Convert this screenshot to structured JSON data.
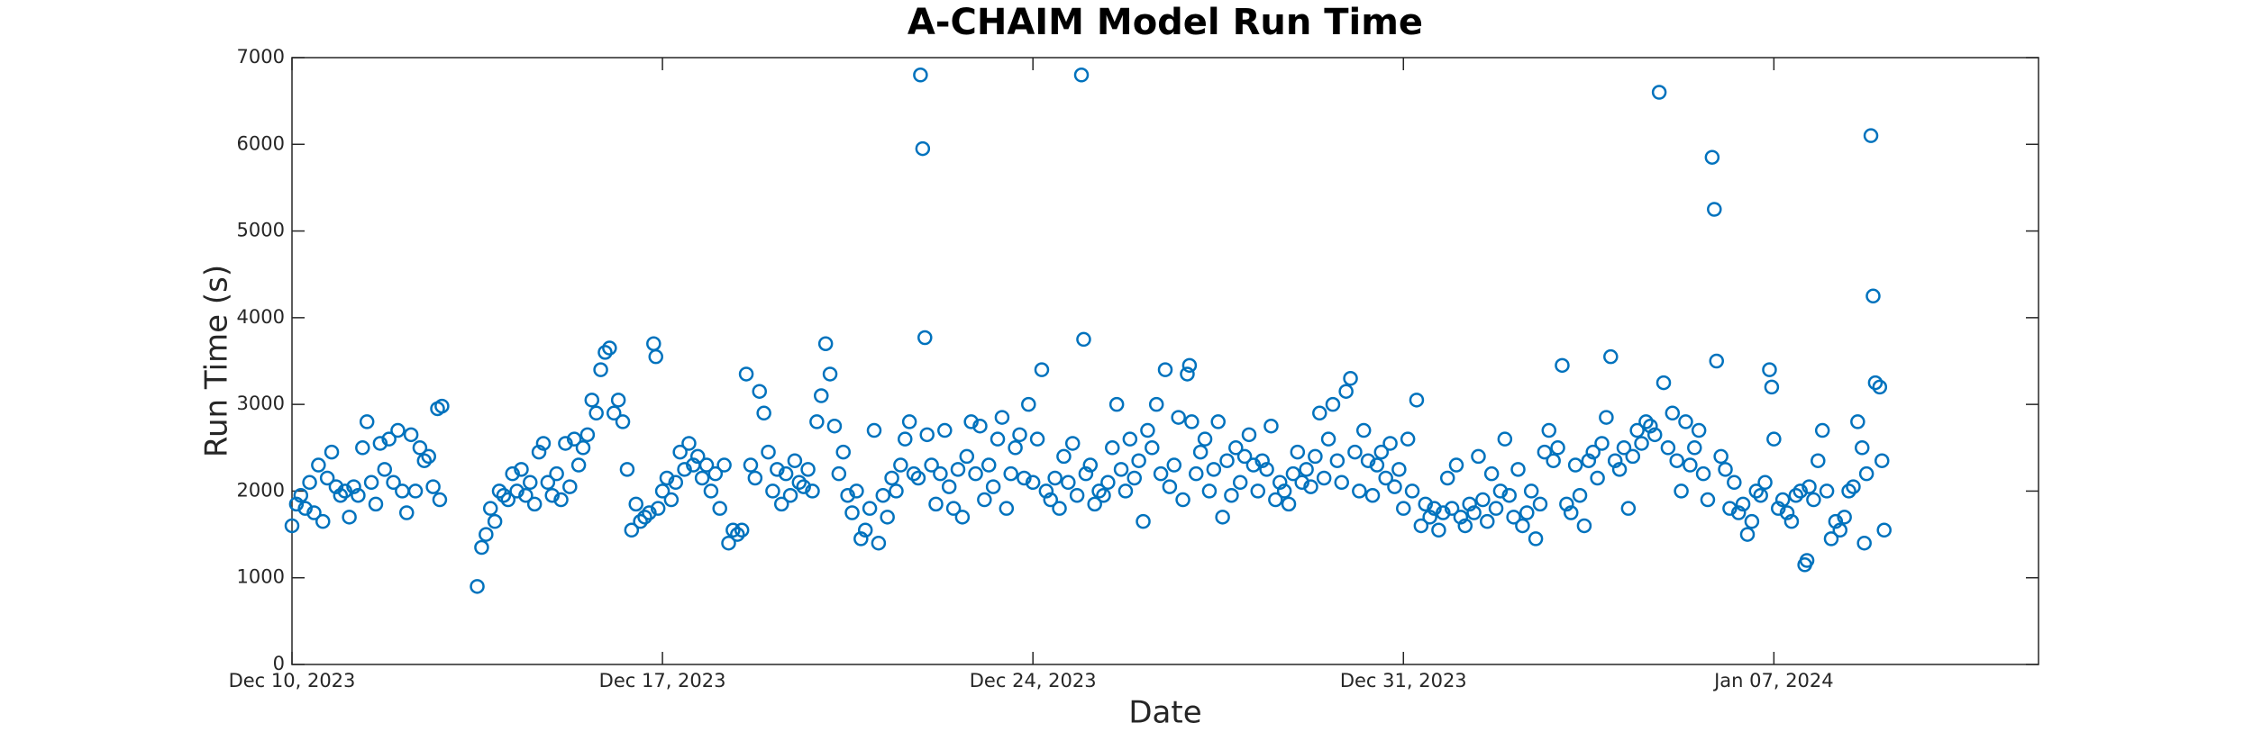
{
  "chart_data": {
    "type": "scatter",
    "title": "A-CHAIM Model Run Time",
    "xlabel": "Date",
    "ylabel": "Run Time (s)",
    "color": "#0072bd",
    "xlim": [
      "2023-12-10T00",
      "2024-01-12T00"
    ],
    "xticks": [
      {
        "value": "2023-12-10T00",
        "label": "Dec 10, 2023"
      },
      {
        "value": "2023-12-17T00",
        "label": "Dec 17, 2023"
      },
      {
        "value": "2023-12-24T00",
        "label": "Dec 24, 2023"
      },
      {
        "value": "2023-12-31T00",
        "label": "Dec 31, 2023"
      },
      {
        "value": "2024-01-07T00",
        "label": "Jan 07, 2024"
      }
    ],
    "ylim": [
      0,
      7000
    ],
    "yticks": [
      0,
      1000,
      2000,
      3000,
      4000,
      5000,
      6000,
      7000
    ],
    "x": [
      "2023-12-10T00",
      "2023-12-10T02",
      "2023-12-10T04",
      "2023-12-10T06",
      "2023-12-10T08",
      "2023-12-10T10",
      "2023-12-10T12",
      "2023-12-10T14",
      "2023-12-10T16",
      "2023-12-10T18",
      "2023-12-10T20",
      "2023-12-10T22",
      "2023-12-11T00",
      "2023-12-11T02",
      "2023-12-11T04",
      "2023-12-11T06",
      "2023-12-11T08",
      "2023-12-11T10",
      "2023-12-11T12",
      "2023-12-11T14",
      "2023-12-11T16",
      "2023-12-11T18",
      "2023-12-11T20",
      "2023-12-11T22",
      "2023-12-12T00",
      "2023-12-12T02",
      "2023-12-12T04",
      "2023-12-12T06",
      "2023-12-12T08",
      "2023-12-12T10",
      "2023-12-12T12",
      "2023-12-12T14",
      "2023-12-12T16",
      "2023-12-12T18",
      "2023-12-12T19",
      "2023-12-12T20",
      "2023-12-13T12",
      "2023-12-13T14",
      "2023-12-13T16",
      "2023-12-13T18",
      "2023-12-13T20",
      "2023-12-13T22",
      "2023-12-14T00",
      "2023-12-14T02",
      "2023-12-14T04",
      "2023-12-14T06",
      "2023-12-14T08",
      "2023-12-14T10",
      "2023-12-14T12",
      "2023-12-14T14",
      "2023-12-14T16",
      "2023-12-14T18",
      "2023-12-14T20",
      "2023-12-14T22",
      "2023-12-15T00",
      "2023-12-15T02",
      "2023-12-15T04",
      "2023-12-15T06",
      "2023-12-15T08",
      "2023-12-15T10",
      "2023-12-15T12",
      "2023-12-15T14",
      "2023-12-15T16",
      "2023-12-15T18",
      "2023-12-15T20",
      "2023-12-15T22",
      "2023-12-16T00",
      "2023-12-16T02",
      "2023-12-16T04",
      "2023-12-16T06",
      "2023-12-16T08",
      "2023-12-16T10",
      "2023-12-16T12",
      "2023-12-16T14",
      "2023-12-16T16",
      "2023-12-16T18",
      "2023-12-16T20",
      "2023-12-16T21",
      "2023-12-16T22",
      "2023-12-17T00",
      "2023-12-17T02",
      "2023-12-17T04",
      "2023-12-17T06",
      "2023-12-17T08",
      "2023-12-17T10",
      "2023-12-17T12",
      "2023-12-17T14",
      "2023-12-17T16",
      "2023-12-17T18",
      "2023-12-17T20",
      "2023-12-17T22",
      "2023-12-18T00",
      "2023-12-18T02",
      "2023-12-18T04",
      "2023-12-18T06",
      "2023-12-18T08",
      "2023-12-18T10",
      "2023-12-18T12",
      "2023-12-18T14",
      "2023-12-18T16",
      "2023-12-18T18",
      "2023-12-18T20",
      "2023-12-18T22",
      "2023-12-19T00",
      "2023-12-19T02",
      "2023-12-19T04",
      "2023-12-19T06",
      "2023-12-19T08",
      "2023-12-19T10",
      "2023-12-19T12",
      "2023-12-19T14",
      "2023-12-19T16",
      "2023-12-19T18",
      "2023-12-19T20",
      "2023-12-19T22",
      "2023-12-20T00",
      "2023-12-20T02",
      "2023-12-20T04",
      "2023-12-20T06",
      "2023-12-20T08",
      "2023-12-20T10",
      "2023-12-20T12",
      "2023-12-20T14",
      "2023-12-20T16",
      "2023-12-20T18",
      "2023-12-20T20",
      "2023-12-20T22",
      "2023-12-21T00",
      "2023-12-21T02",
      "2023-12-21T04",
      "2023-12-21T06",
      "2023-12-21T08",
      "2023-12-21T10",
      "2023-12-21T12",
      "2023-12-21T14",
      "2023-12-21T16",
      "2023-12-21T18",
      "2023-12-21T20",
      "2023-12-21T21",
      "2023-12-21T22",
      "2023-12-21T23",
      "2023-12-22T00",
      "2023-12-22T02",
      "2023-12-22T04",
      "2023-12-22T06",
      "2023-12-22T08",
      "2023-12-22T10",
      "2023-12-22T12",
      "2023-12-22T14",
      "2023-12-22T16",
      "2023-12-22T18",
      "2023-12-22T20",
      "2023-12-22T22",
      "2023-12-23T00",
      "2023-12-23T02",
      "2023-12-23T04",
      "2023-12-23T06",
      "2023-12-23T08",
      "2023-12-23T10",
      "2023-12-23T12",
      "2023-12-23T14",
      "2023-12-23T16",
      "2023-12-23T18",
      "2023-12-23T20",
      "2023-12-23T22",
      "2023-12-24T00",
      "2023-12-24T02",
      "2023-12-24T04",
      "2023-12-24T06",
      "2023-12-24T08",
      "2023-12-24T10",
      "2023-12-24T12",
      "2023-12-24T14",
      "2023-12-24T16",
      "2023-12-24T18",
      "2023-12-24T20",
      "2023-12-24T22",
      "2023-12-24T23",
      "2023-12-25T00",
      "2023-12-25T02",
      "2023-12-25T04",
      "2023-12-25T06",
      "2023-12-25T08",
      "2023-12-25T10",
      "2023-12-25T12",
      "2023-12-25T14",
      "2023-12-25T16",
      "2023-12-25T18",
      "2023-12-25T20",
      "2023-12-25T22",
      "2023-12-26T00",
      "2023-12-26T02",
      "2023-12-26T04",
      "2023-12-26T06",
      "2023-12-26T08",
      "2023-12-26T10",
      "2023-12-26T12",
      "2023-12-26T14",
      "2023-12-26T16",
      "2023-12-26T18",
      "2023-12-26T20",
      "2023-12-26T22",
      "2023-12-26T23",
      "2023-12-27T00",
      "2023-12-27T02",
      "2023-12-27T04",
      "2023-12-27T06",
      "2023-12-27T08",
      "2023-12-27T10",
      "2023-12-27T12",
      "2023-12-27T14",
      "2023-12-27T16",
      "2023-12-27T18",
      "2023-12-27T20",
      "2023-12-27T22",
      "2023-12-28T00",
      "2023-12-28T02",
      "2023-12-28T04",
      "2023-12-28T06",
      "2023-12-28T08",
      "2023-12-28T10",
      "2023-12-28T12",
      "2023-12-28T14",
      "2023-12-28T16",
      "2023-12-28T18",
      "2023-12-28T20",
      "2023-12-28T22",
      "2023-12-29T00",
      "2023-12-29T02",
      "2023-12-29T04",
      "2023-12-29T06",
      "2023-12-29T08",
      "2023-12-29T10",
      "2023-12-29T12",
      "2023-12-29T14",
      "2023-12-29T16",
      "2023-12-29T18",
      "2023-12-29T20",
      "2023-12-29T22",
      "2023-12-30T00",
      "2023-12-30T02",
      "2023-12-30T04",
      "2023-12-30T06",
      "2023-12-30T08",
      "2023-12-30T10",
      "2023-12-30T12",
      "2023-12-30T14",
      "2023-12-30T16",
      "2023-12-30T18",
      "2023-12-30T20",
      "2023-12-30T22",
      "2023-12-31T00",
      "2023-12-31T02",
      "2023-12-31T04",
      "2023-12-31T06",
      "2023-12-31T08",
      "2023-12-31T10",
      "2023-12-31T12",
      "2023-12-31T14",
      "2023-12-31T16",
      "2023-12-31T18",
      "2023-12-31T20",
      "2023-12-31T22",
      "2024-01-01T00",
      "2024-01-01T02",
      "2024-01-01T04",
      "2024-01-01T06",
      "2024-01-01T08",
      "2024-01-01T10",
      "2024-01-01T12",
      "2024-01-01T14",
      "2024-01-01T16",
      "2024-01-01T18",
      "2024-01-01T20",
      "2024-01-01T22",
      "2024-01-02T00",
      "2024-01-02T02",
      "2024-01-02T04",
      "2024-01-02T06",
      "2024-01-02T08",
      "2024-01-02T10",
      "2024-01-02T12",
      "2024-01-02T14",
      "2024-01-02T16",
      "2024-01-02T18",
      "2024-01-02T20",
      "2024-01-02T22",
      "2024-01-03T00",
      "2024-01-03T02",
      "2024-01-03T04",
      "2024-01-03T06",
      "2024-01-03T08",
      "2024-01-03T10",
      "2024-01-03T12",
      "2024-01-03T14",
      "2024-01-03T16",
      "2024-01-03T18",
      "2024-01-03T20",
      "2024-01-03T22",
      "2024-01-04T00",
      "2024-01-04T02",
      "2024-01-04T04",
      "2024-01-04T06",
      "2024-01-04T08",
      "2024-01-04T10",
      "2024-01-04T12",
      "2024-01-04T14",
      "2024-01-04T16",
      "2024-01-04T18",
      "2024-01-04T20",
      "2024-01-04T22",
      "2024-01-05T00",
      "2024-01-05T02",
      "2024-01-05T04",
      "2024-01-05T06",
      "2024-01-05T08",
      "2024-01-05T10",
      "2024-01-05T12",
      "2024-01-05T14",
      "2024-01-05T16",
      "2024-01-05T18",
      "2024-01-05T20",
      "2024-01-05T21",
      "2024-01-05T22",
      "2024-01-06T00",
      "2024-01-06T02",
      "2024-01-06T04",
      "2024-01-06T06",
      "2024-01-06T08",
      "2024-01-06T10",
      "2024-01-06T12",
      "2024-01-06T14",
      "2024-01-06T16",
      "2024-01-06T18",
      "2024-01-06T20",
      "2024-01-06T22",
      "2024-01-06T23",
      "2024-01-07T00",
      "2024-01-07T02",
      "2024-01-07T04",
      "2024-01-07T06",
      "2024-01-07T08",
      "2024-01-07T10",
      "2024-01-07T12",
      "2024-01-07T14",
      "2024-01-07T15",
      "2024-01-07T16",
      "2024-01-07T18",
      "2024-01-07T20",
      "2024-01-07T22",
      "2024-01-08T00",
      "2024-01-08T02",
      "2024-01-08T04",
      "2024-01-08T06",
      "2024-01-08T08",
      "2024-01-08T10",
      "2024-01-08T12",
      "2024-01-08T14",
      "2024-01-08T16",
      "2024-01-08T17",
      "2024-01-08T18",
      "2024-01-08T20",
      "2024-01-08T21",
      "2024-01-08T22",
      "2024-01-09T00",
      "2024-01-09T01",
      "2024-01-09T02"
    ],
    "values": [
      1600,
      1850,
      1950,
      1800,
      2100,
      1750,
      2300,
      1650,
      2150,
      2450,
      2050,
      1950,
      2000,
      1700,
      2050,
      1950,
      2500,
      2800,
      2100,
      1850,
      2550,
      2250,
      2600,
      2100,
      2700,
      2000,
      1750,
      2650,
      2000,
      2500,
      2350,
      2400,
      2050,
      2950,
      1900,
      2980,
      900,
      1350,
      1500,
      1800,
      1650,
      2000,
      1950,
      1900,
      2200,
      2000,
      2250,
      1950,
      2100,
      1850,
      2450,
      2550,
      2100,
      1950,
      2200,
      1900,
      2550,
      2050,
      2600,
      2300,
      2500,
      2650,
      3050,
      2900,
      3400,
      3600,
      3650,
      2900,
      3050,
      2800,
      2250,
      1550,
      1850,
      1650,
      1700,
      1750,
      3700,
      3550,
      1800,
      2000,
      2150,
      1900,
      2100,
      2450,
      2250,
      2550,
      2300,
      2400,
      2150,
      2300,
      2000,
      2200,
      1800,
      2300,
      1400,
      1550,
      1500,
      1550,
      3350,
      2300,
      2150,
      3150,
      2900,
      2450,
      2000,
      2250,
      1850,
      2200,
      1950,
      2350,
      2100,
      2050,
      2250,
      2000,
      2800,
      3100,
      3700,
      3350,
      2750,
      2200,
      2450,
      1950,
      1750,
      2000,
      1450,
      1550,
      1800,
      2700,
      1400,
      1950,
      1700,
      2150,
      2000,
      2300,
      2600,
      2800,
      2200,
      2150,
      6800,
      5950,
      3770,
      2650,
      2300,
      1850,
      2200,
      2700,
      2050,
      1800,
      2250,
      1700,
      2400,
      2800,
      2200,
      2750,
      1900,
      2300,
      2050,
      2600,
      2850,
      1800,
      2200,
      2500,
      2650,
      2150,
      3000,
      2100,
      2600,
      3400,
      2000,
      1900,
      2150,
      1800,
      2400,
      2100,
      2550,
      1950,
      6800,
      3750,
      2200,
      2300,
      1850,
      2000,
      1950,
      2100,
      2500,
      3000,
      2250,
      2000,
      2600,
      2150,
      2350,
      1650,
      2700,
      2500,
      3000,
      2200,
      3400,
      2050,
      2300,
      2850,
      1900,
      3350,
      3450,
      2800,
      2200,
      2450,
      2600,
      2000,
      2250,
      2800,
      1700,
      2350,
      1950,
      2500,
      2100,
      2400,
      2650,
      2300,
      2000,
      2350,
      2250,
      2750,
      1900,
      2100,
      2000,
      1850,
      2200,
      2450,
      2100,
      2250,
      2050,
      2400,
      2900,
      2150,
      2600,
      3000,
      2350,
      2100,
      3150,
      3300,
      2450,
      2000,
      2700,
      2350,
      1950,
      2300,
      2450,
      2150,
      2550,
      2050,
      2250,
      1800,
      2600,
      2000,
      3050,
      1600,
      1850,
      1700,
      1800,
      1550,
      1750,
      2150,
      1800,
      2300,
      1700,
      1600,
      1850,
      1750,
      2400,
      1900,
      1650,
      2200,
      1800,
      2000,
      2600,
      1950,
      1700,
      2250,
      1600,
      1750,
      2000,
      1450,
      1850,
      2450,
      2700,
      2350,
      2500,
      3450,
      1850,
      1750,
      2300,
      1950,
      1600,
      2350,
      2450,
      2150,
      2550,
      2850,
      3550,
      2350,
      2250,
      2500,
      1800,
      2400,
      2700,
      2550,
      2800,
      2750,
      2650,
      6600,
      3250,
      2500,
      2900,
      2350,
      2000,
      2800,
      2300,
      2500,
      2700,
      2200,
      1900,
      5850,
      5250,
      3500,
      2400,
      2250,
      1800,
      2100,
      1750,
      1850,
      1500,
      1650,
      2000,
      1950,
      2100,
      3400,
      3200,
      2600,
      1800,
      1900,
      1750,
      1650,
      1950,
      2000,
      1150,
      1200,
      2050,
      1900,
      2350,
      2700,
      2000,
      1450,
      1650,
      1550,
      1700,
      2000,
      2050,
      2800,
      2500,
      1400,
      2200,
      6100,
      4250,
      3250,
      3200,
      2350,
      1550
    ]
  }
}
